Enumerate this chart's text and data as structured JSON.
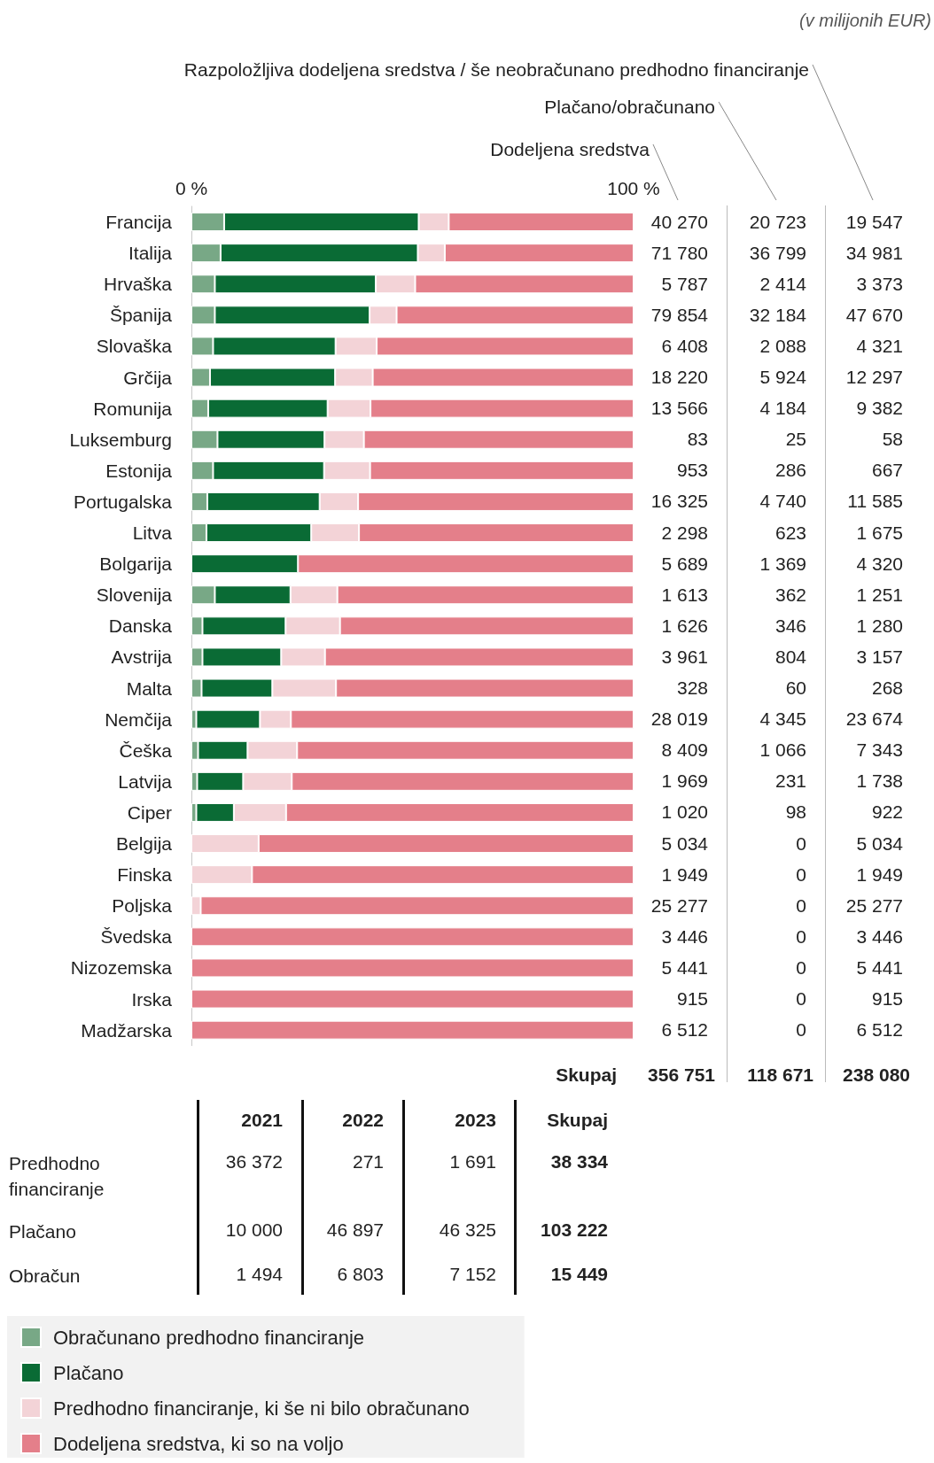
{
  "chart_data": [
    {
      "type": "bar",
      "orientation": "horizontal",
      "stacked": true,
      "legend": "bottom left",
      "xlim": [
        0,
        100
      ],
      "xticks": [
        {
          "value": 0,
          "label": "0 %"
        },
        {
          "value": 100,
          "label": "100 %"
        }
      ],
      "categories": [
        "Francija",
        "Italija",
        "Hrvaška",
        "Španija",
        "Slovaška",
        "Grčija",
        "Romunija",
        "Luksemburg",
        "Estonija",
        "Portugalska",
        "Litva",
        "Bolgarija",
        "Slovenija",
        "Danska",
        "Avstrija",
        "Malta",
        "Nemčija",
        "Češka",
        "Latvija",
        "Ciper",
        "Belgija",
        "Finska",
        "Poljska",
        "Švedska",
        "Nizozemska",
        "Irska",
        "Madžarska"
      ],
      "series": [
        {
          "name": "Obračunano predhodno financiranje",
          "color": "#78a886",
          "values": [
            7.4,
            6.6,
            5.3,
            5.3,
            4.9,
            4.2,
            3.8,
            5.9,
            4.9,
            3.6,
            3.4,
            0,
            5.3,
            2.5,
            2.5,
            2.3,
            1.1,
            1.5,
            1.3,
            1.1,
            0,
            0,
            0,
            0,
            0,
            0,
            0
          ]
        },
        {
          "name": "Plačano",
          "color": "#0a6b35",
          "values": [
            44.0,
            44.6,
            36.4,
            35.0,
            27.7,
            28.3,
            27.0,
            24.2,
            25.1,
            25.4,
            23.7,
            24.1,
            17.1,
            18.8,
            17.8,
            16.0,
            14.4,
            11.2,
            10.4,
            8.5,
            0,
            0,
            0,
            0,
            0,
            0,
            0
          ]
        },
        {
          "name": "Predhodno financiranje, ki še ni bilo obračunano",
          "color": "#f3d3d7",
          "values": [
            6.8,
            6.1,
            8.9,
            6.1,
            9.3,
            8.5,
            9.7,
            8.9,
            10.4,
            8.7,
            10.8,
            0,
            10.6,
            12.3,
            9.9,
            14.4,
            7.0,
            11.2,
            11.0,
            11.8,
            15.2,
            13.7,
            2.1,
            0,
            0,
            0,
            0
          ]
        },
        {
          "name": "Dodeljena sredstva, ki so na voljo",
          "color": "#e47f8a",
          "values": [
            41.8,
            42.7,
            49.4,
            53.6,
            58.1,
            59.0,
            59.5,
            61.0,
            59.6,
            62.3,
            62.1,
            75.9,
            67.0,
            66.4,
            69.8,
            67.3,
            77.5,
            76.1,
            77.3,
            78.6,
            84.8,
            86.3,
            97.9,
            100,
            100,
            100,
            100
          ]
        }
      ]
    },
    {
      "type": "other",
      "annotations": [
        "(v milijonih EUR)",
        "Skupaj"
      ],
      "totals": [
        "356 751",
        "118 671",
        "238 080"
      ],
      "categories": [
        "Dodeljena sredstva",
        "Plačano/obračunano",
        "Razpoložljiva dodeljena sredstva / še neobračunano predhodno financiranje"
      ],
      "cells": [
        [
          "40 270",
          "20 723",
          "19 547"
        ],
        [
          "71 780",
          "36 799",
          "34 981"
        ],
        [
          "5 787",
          "2 414",
          "3 373"
        ],
        [
          "79 854",
          "32 184",
          "47 670"
        ],
        [
          "6 408",
          "2 088",
          "4 321"
        ],
        [
          "18 220",
          "5 924",
          "12 297"
        ],
        [
          "13 566",
          "4 184",
          "9 382"
        ],
        [
          "83",
          "25",
          "58"
        ],
        [
          "953",
          "286",
          "667"
        ],
        [
          "16 325",
          "4 740",
          "11 585"
        ],
        [
          "2 298",
          "623",
          "1 675"
        ],
        [
          "5 689",
          "1 369",
          "4 320"
        ],
        [
          "1 613",
          "362",
          "1 251"
        ],
        [
          "1 626",
          "346",
          "1 280"
        ],
        [
          "3 961",
          "804",
          "3 157"
        ],
        [
          "328",
          "60",
          "268"
        ],
        [
          "28 019",
          "4 345",
          "23 674"
        ],
        [
          "8 409",
          "1 066",
          "7 343"
        ],
        [
          "1 969",
          "231",
          "1 738"
        ],
        [
          "1 020",
          "98",
          "922"
        ],
        [
          "5 034",
          "0",
          "5 034"
        ],
        [
          "1 949",
          "0",
          "1 949"
        ],
        [
          "25 277",
          "0",
          "25 277"
        ],
        [
          "3 446",
          "0",
          "3 446"
        ],
        [
          "5 441",
          "0",
          "5 441"
        ],
        [
          "915",
          "0",
          "915"
        ],
        [
          "6 512",
          "0",
          "6 512"
        ]
      ]
    },
    {
      "type": "other",
      "categories": [
        "2021",
        "2022",
        "2023",
        "Skupaj"
      ],
      "y_categories": [
        "Predhodno financiranje",
        "Plačano",
        "Obračun"
      ],
      "cells": [
        [
          "36 372",
          "271",
          "1 691",
          "38 334"
        ],
        [
          "10 000",
          "46 897",
          "46 325",
          "103 222"
        ],
        [
          "1 494",
          "6 803",
          "7 152",
          "15 449"
        ]
      ]
    }
  ]
}
